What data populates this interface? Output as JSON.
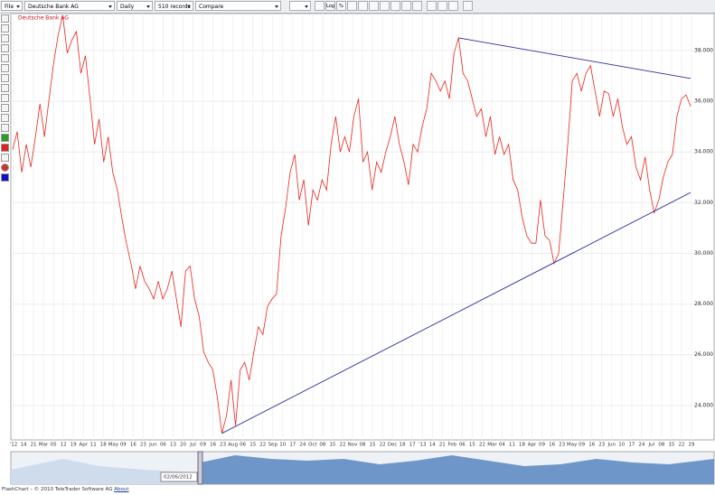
{
  "toolbar": {
    "menu": "File",
    "instrument": "Deutsche Bank AG",
    "interval": "Daily",
    "records": "510 records",
    "compare": "Compare",
    "log": "Log",
    "percent": "%"
  },
  "chart_data": {
    "type": "line",
    "title": "Deutsche Bank AG",
    "x_labels": [
      "'12",
      "14",
      "21",
      "Mar",
      "05",
      "12",
      "19",
      "Apr",
      "11",
      "18",
      "May",
      "09",
      "16",
      "23",
      "Jun",
      "06",
      "13",
      "20",
      "Jul",
      "09",
      "16",
      "23",
      "Aug",
      "06",
      "15",
      "22",
      "Sep",
      "10",
      "17",
      "24",
      "Oct",
      "08",
      "15",
      "22",
      "Nov",
      "08",
      "15",
      "22",
      "Dec",
      "18",
      "17",
      "'13",
      "14",
      "21",
      "Feb",
      "06",
      "15",
      "22",
      "Mar",
      "04",
      "11",
      "18",
      "Apr",
      "09",
      "16",
      "23",
      "May",
      "09",
      "16",
      "23",
      "Jun",
      "10",
      "17",
      "24",
      "Jul",
      "08",
      "15",
      "22",
      "29"
    ],
    "series": [
      {
        "name": "Deutsche Bank AG",
        "color": "#e8261c",
        "values": [
          34.1,
          34.8,
          33.2,
          34.3,
          33.4,
          34.6,
          35.9,
          34.6,
          36.1,
          37.5,
          38.6,
          39.4,
          37.9,
          38.4,
          38.75,
          37.1,
          37.8,
          36.1,
          34.3,
          35.3,
          33.6,
          34.6,
          33.2,
          32.5,
          31.4,
          30.4,
          29.6,
          28.6,
          29.5,
          28.9,
          28.6,
          28.2,
          28.9,
          28.2,
          28.6,
          29.3,
          28.2,
          27.1,
          29.3,
          29.5,
          28.2,
          27.5,
          26.1,
          25.7,
          25.4,
          24.3,
          22.9,
          23.6,
          25.0,
          23.2,
          25.4,
          25.7,
          25.0,
          26.1,
          27.1,
          26.8,
          27.9,
          28.2,
          28.4,
          30.7,
          31.8,
          33.2,
          33.9,
          32.1,
          32.9,
          31.1,
          32.5,
          32.1,
          32.9,
          32.5,
          34.3,
          35.4,
          34.0,
          34.6,
          34.0,
          35.4,
          36.1,
          33.6,
          34.0,
          32.5,
          33.6,
          33.2,
          34.0,
          34.6,
          35.4,
          34.3,
          33.6,
          32.7,
          34.3,
          34.0,
          35.0,
          35.7,
          37.1,
          36.8,
          36.4,
          36.8,
          36.1,
          37.9,
          38.5,
          37.1,
          36.8,
          36.1,
          35.4,
          35.7,
          34.6,
          35.4,
          33.9,
          34.6,
          33.9,
          34.3,
          32.9,
          32.5,
          31.4,
          30.7,
          30.4,
          30.4,
          32.1,
          30.7,
          30.5,
          29.6,
          30.0,
          32.1,
          34.3,
          36.8,
          37.1,
          36.4,
          37.1,
          37.4,
          36.4,
          35.4,
          36.4,
          36.3,
          35.4,
          36.1,
          35.0,
          34.3,
          34.6,
          33.4,
          32.9,
          33.8,
          32.5,
          31.6,
          32.1,
          33.0,
          33.6,
          33.9,
          35.4,
          36.1,
          36.25,
          35.8
        ]
      }
    ],
    "trendlines": [
      {
        "color": "#2a2aa0",
        "from": [
          46,
          22.9
        ],
        "to": [
          149,
          32.4
        ]
      },
      {
        "color": "#2a2aa0",
        "from": [
          98,
          38.5
        ],
        "to": [
          149,
          36.9
        ]
      }
    ],
    "ylim": [
      22.64,
      39.46
    ],
    "yticks": [
      {
        "value": 24,
        "label": "24.000"
      },
      {
        "value": 26,
        "label": "26.000"
      },
      {
        "value": 28,
        "label": "28.000"
      },
      {
        "value": 30,
        "label": "30.000"
      },
      {
        "value": 32,
        "label": "32.000"
      },
      {
        "value": 34,
        "label": "34.000"
      },
      {
        "value": 36,
        "label": "36.000"
      },
      {
        "value": 38,
        "label": "38.000"
      }
    ],
    "grid": true
  },
  "navigator": {
    "date": "02/06/2012"
  },
  "footer": {
    "text": "FlashChart – © 2010 TeleTrader Software AG",
    "link": "About"
  }
}
